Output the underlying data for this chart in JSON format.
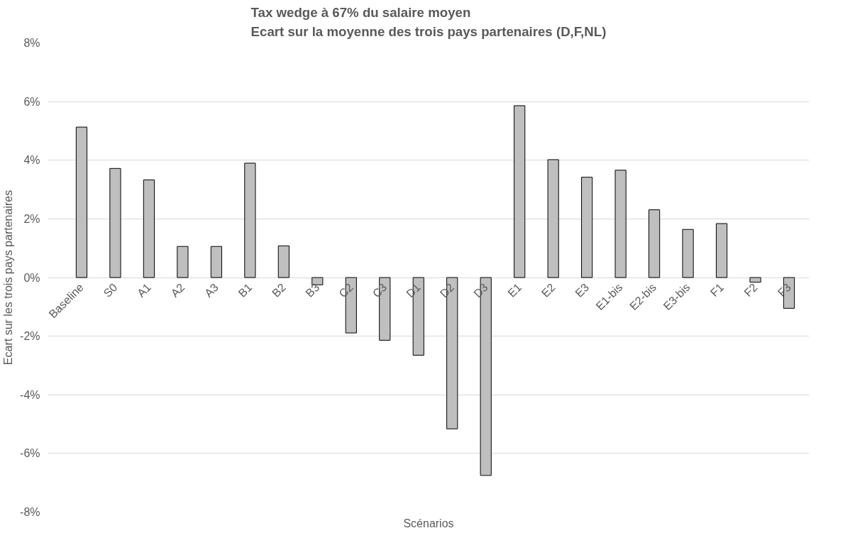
{
  "chart_data": {
    "type": "bar",
    "title": "Tax wedge à 67% du salaire moyen\nEcart sur la moyenne des trois pays partenaires (D,F,NL)",
    "xlabel": "Scénarios",
    "ylabel": "Ecart sur les trois pays partenaires",
    "categories": [
      "Baseline",
      "S0",
      "A1",
      "A2",
      "A3",
      "B1",
      "B2",
      "B3",
      "C2",
      "C3",
      "D1",
      "D2",
      "D3",
      "E1",
      "E2",
      "E3",
      "E1-bis",
      "E2-bis",
      "E3-bis",
      "F1",
      "F2",
      "F3"
    ],
    "series": [
      {
        "color": "#bfbfbf",
        "values": [
          5.13,
          3.72,
          3.33,
          1.06,
          1.06,
          3.9,
          1.08,
          -0.25,
          -1.89,
          -2.14,
          -2.65,
          -5.16,
          -6.75,
          5.86,
          4.02,
          3.42,
          3.66,
          2.31,
          1.64,
          1.84,
          -0.16,
          -1.05
        ]
      }
    ],
    "ylim": [
      -8,
      8
    ],
    "yticks": [
      {
        "value": -8,
        "label": "-8%"
      },
      {
        "value": -6,
        "label": "-6%"
      },
      {
        "value": -4,
        "label": "-4%"
      },
      {
        "value": -2,
        "label": "-2%"
      },
      {
        "value": 0,
        "label": "0%"
      },
      {
        "value": 2,
        "label": "2%"
      },
      {
        "value": 4,
        "label": "4%"
      },
      {
        "value": 6,
        "label": "6%"
      },
      {
        "value": 8,
        "label": "8%"
      }
    ],
    "grid": "y"
  }
}
